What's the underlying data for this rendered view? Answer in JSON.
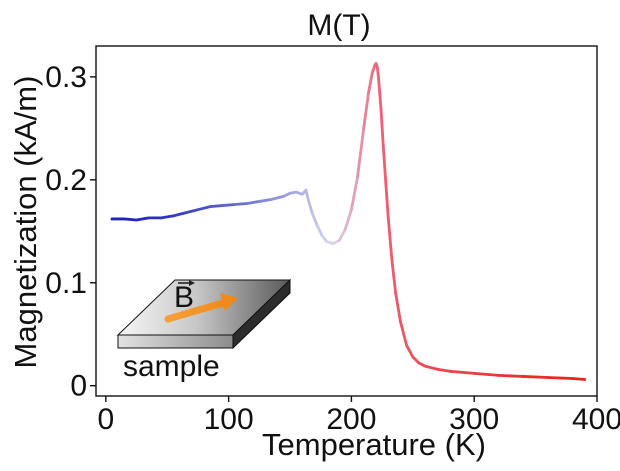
{
  "chart_data": {
    "type": "line",
    "title": "M(T)",
    "xlabel": "Temperature (K)",
    "ylabel": "Magnetization (kA/m)",
    "xlim": [
      -8,
      400
    ],
    "ylim": [
      -0.01,
      0.33
    ],
    "x_ticks": [
      0,
      100,
      200,
      300,
      400
    ],
    "x_tick_labels": [
      "0",
      "100",
      "200",
      "300",
      "400"
    ],
    "y_ticks": [
      0,
      0.1,
      0.2,
      0.3
    ],
    "y_tick_labels": [
      "0",
      "0.1",
      "0.2",
      "0.3"
    ],
    "grid": false,
    "legend": "none",
    "colormap": {
      "low": "#1e22b8",
      "mid": "#d8d8f0",
      "high": "#e8221a",
      "peak": "#f06478"
    },
    "series": [
      {
        "name": "M(T)",
        "x": [
          5,
          15,
          25,
          35,
          45,
          55,
          65,
          75,
          85,
          95,
          105,
          115,
          125,
          135,
          145,
          150,
          155,
          160,
          163,
          165,
          168,
          172,
          176,
          180,
          185,
          190,
          195,
          200,
          205,
          210,
          214,
          217,
          219,
          220,
          221,
          222,
          224,
          226,
          228,
          230,
          233,
          236,
          240,
          245,
          250,
          255,
          260,
          270,
          280,
          300,
          320,
          340,
          360,
          380,
          390
        ],
        "y": [
          0.162,
          0.162,
          0.161,
          0.163,
          0.163,
          0.165,
          0.168,
          0.171,
          0.174,
          0.175,
          0.176,
          0.177,
          0.179,
          0.181,
          0.184,
          0.187,
          0.188,
          0.186,
          0.19,
          0.18,
          0.168,
          0.156,
          0.146,
          0.14,
          0.138,
          0.141,
          0.152,
          0.171,
          0.203,
          0.25,
          0.285,
          0.304,
          0.311,
          0.313,
          0.31,
          0.3,
          0.27,
          0.232,
          0.197,
          0.163,
          0.122,
          0.09,
          0.062,
          0.039,
          0.028,
          0.022,
          0.019,
          0.016,
          0.014,
          0.012,
          0.01,
          0.009,
          0.008,
          0.007,
          0.006
        ]
      }
    ],
    "inset": {
      "vector_label": "B",
      "caption": "sample"
    }
  }
}
